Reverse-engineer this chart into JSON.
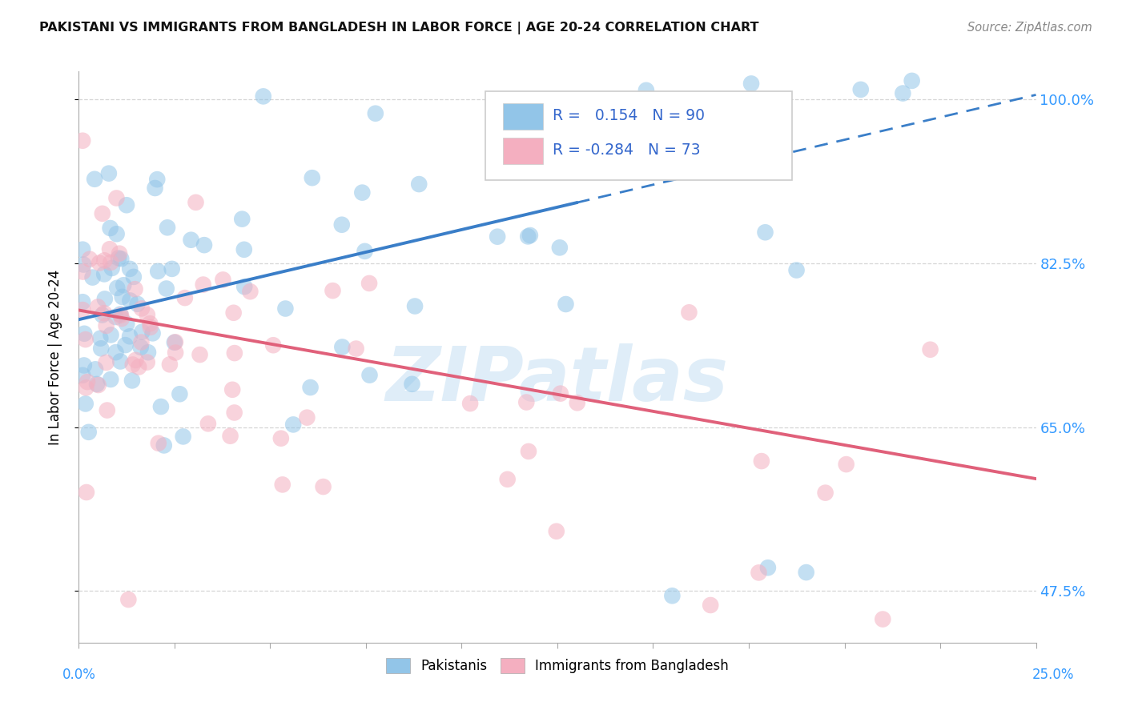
{
  "title": "PAKISTANI VS IMMIGRANTS FROM BANGLADESH IN LABOR FORCE | AGE 20-24 CORRELATION CHART",
  "source": "Source: ZipAtlas.com",
  "ylabel": "In Labor Force | Age 20-24",
  "xmin": 0.0,
  "xmax": 0.25,
  "ymin": 0.42,
  "ymax": 1.03,
  "R_blue": 0.154,
  "N_blue": 90,
  "R_pink": -0.284,
  "N_pink": 73,
  "blue_color": "#92c5e8",
  "pink_color": "#f4afc0",
  "trend_blue": "#3a7ec8",
  "trend_pink": "#e0607a",
  "watermark_text": "ZIPatlas",
  "background_color": "#ffffff",
  "trend_blue_x0": 0.0,
  "trend_blue_y0": 0.765,
  "trend_blue_x1": 0.25,
  "trend_blue_y1": 1.005,
  "trend_blue_solid_end": 0.13,
  "trend_pink_x0": 0.0,
  "trend_pink_y0": 0.775,
  "trend_pink_x1": 0.25,
  "trend_pink_y1": 0.595,
  "ytick_vals": [
    0.475,
    0.65,
    0.825,
    1.0
  ],
  "ytick_labels": [
    "47.5%",
    "65.0%",
    "82.5%",
    "100.0%"
  ]
}
